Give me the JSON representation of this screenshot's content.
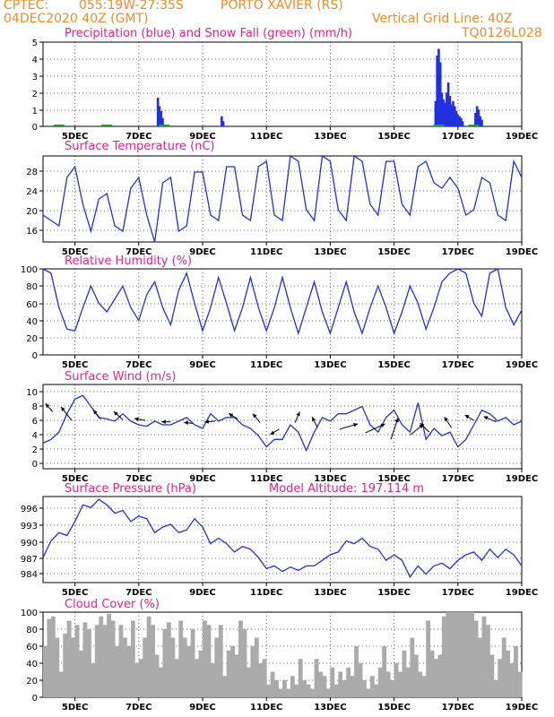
{
  "header": {
    "source": "CPTEC:",
    "coords": "055:19W-27:35S",
    "location": "PORTO XAVIER (RS)",
    "init": "04DEC2020 40Z (GMT)",
    "grid_note": "Vertical Grid Line: 40Z",
    "model_code": "TQ0126L028"
  },
  "colors": {
    "header": "#f08c28",
    "title": "#e8208a",
    "series": "#2030e0",
    "snow": "#20a020",
    "cloud": "#aaaaaa",
    "grid": "#666666"
  },
  "x_axis": {
    "ticks": [
      "5DEC",
      "7DEC",
      "9DEC",
      "11DEC",
      "13DEC",
      "15DEC",
      "17DEC",
      "19DEC"
    ]
  },
  "chart_data": [
    {
      "id": "precip",
      "type": "bar",
      "title": "Precipitation (blue) and Snow Fall (green) (mm/h)",
      "ylim": [
        0,
        5
      ],
      "yticks": [
        "5",
        "4",
        "3",
        "2",
        "1",
        "0"
      ],
      "series": [
        {
          "name": "Precipitation",
          "color": "#2030e0",
          "x": [
            7.6,
            7.65,
            7.7,
            7.75,
            9.6,
            9.65,
            16.3,
            16.35,
            16.4,
            16.45,
            16.5,
            16.55,
            16.6,
            16.65,
            16.7,
            16.75,
            16.8,
            16.85,
            16.9,
            16.95,
            17.0,
            17.05,
            17.1,
            17.15,
            17.55,
            17.6,
            17.65,
            17.7,
            17.75
          ],
          "values": [
            1.7,
            1.2,
            0.9,
            0.5,
            0.6,
            0.3,
            1.5,
            4.2,
            4.6,
            3.8,
            2.0,
            1.6,
            1.4,
            2.0,
            2.6,
            1.8,
            1.3,
            1.5,
            1.2,
            0.9,
            0.7,
            0.6,
            0.5,
            0.3,
            0.8,
            1.2,
            1.0,
            0.6,
            0.4
          ]
        }
      ]
    },
    {
      "id": "temperature",
      "type": "line",
      "title": "Surface Temperature (nC)",
      "ylim": [
        15,
        31
      ],
      "yticks": [
        "28",
        "24",
        "20",
        "16"
      ],
      "x": [
        4.0,
        4.25,
        4.5,
        4.75,
        5.0,
        5.25,
        5.5,
        5.75,
        6.0,
        6.25,
        6.5,
        6.75,
        7.0,
        7.25,
        7.5,
        7.75,
        8.0,
        8.25,
        8.5,
        8.75,
        9.0,
        9.25,
        9.5,
        9.75,
        10.0,
        10.25,
        10.5,
        10.75,
        11.0,
        11.25,
        11.5,
        11.75,
        12.0,
        12.25,
        12.5,
        12.75,
        13.0,
        13.25,
        13.5,
        13.75,
        14.0,
        14.25,
        14.5,
        14.75,
        15.0,
        15.25,
        15.5,
        15.75,
        16.0,
        16.25,
        16.5,
        16.75,
        17.0,
        17.25,
        17.5,
        17.75,
        18.0,
        18.25,
        18.5,
        18.75,
        19.0
      ],
      "values": [
        20,
        19,
        18,
        27,
        29,
        22,
        17,
        23,
        24,
        18,
        17,
        25,
        27,
        20,
        15,
        26,
        27,
        17,
        18,
        28,
        28,
        20,
        19,
        29,
        29,
        20,
        19,
        29,
        30,
        20,
        19,
        31,
        30,
        21,
        19,
        31,
        30,
        21,
        19,
        31,
        30,
        22,
        20,
        30,
        30,
        22,
        20,
        29,
        30,
        26,
        25,
        27,
        25,
        20,
        21,
        27,
        26,
        20,
        19,
        30,
        27
      ]
    },
    {
      "id": "humidity",
      "type": "line",
      "title": "Relative Humidity (%)",
      "ylim": [
        0,
        100
      ],
      "yticks": [
        "100",
        "80",
        "60",
        "40",
        "20",
        "0"
      ],
      "x": [
        4.0,
        4.25,
        4.5,
        4.75,
        5.0,
        5.25,
        5.5,
        5.75,
        6.0,
        6.25,
        6.5,
        6.75,
        7.0,
        7.25,
        7.5,
        7.75,
        8.0,
        8.25,
        8.5,
        8.75,
        9.0,
        9.25,
        9.5,
        9.75,
        10.0,
        10.25,
        10.5,
        10.75,
        11.0,
        11.25,
        11.5,
        11.75,
        12.0,
        12.25,
        12.5,
        12.75,
        13.0,
        13.25,
        13.5,
        13.75,
        14.0,
        14.25,
        14.5,
        14.75,
        15.0,
        15.25,
        15.5,
        15.75,
        16.0,
        16.25,
        16.5,
        16.75,
        17.0,
        17.25,
        17.5,
        17.75,
        18.0,
        18.25,
        18.5,
        18.75,
        19.0
      ],
      "values": [
        100,
        95,
        55,
        30,
        28,
        55,
        80,
        60,
        50,
        65,
        80,
        55,
        40,
        70,
        85,
        55,
        35,
        75,
        95,
        60,
        28,
        55,
        90,
        60,
        28,
        55,
        90,
        55,
        28,
        55,
        90,
        55,
        25,
        55,
        85,
        50,
        25,
        55,
        85,
        50,
        25,
        55,
        80,
        55,
        25,
        50,
        80,
        60,
        30,
        55,
        85,
        95,
        100,
        95,
        60,
        45,
        95,
        100,
        55,
        35,
        52
      ]
    },
    {
      "id": "wind",
      "type": "line",
      "title": "Surface Wind (m/s)",
      "ylim": [
        -1,
        10.5
      ],
      "yticks": [
        "10",
        "8",
        "6",
        "4",
        "2",
        "0"
      ],
      "x": [
        4.0,
        4.25,
        4.5,
        4.75,
        5.0,
        5.25,
        5.5,
        5.75,
        6.0,
        6.25,
        6.5,
        6.75,
        7.0,
        7.25,
        7.5,
        7.75,
        8.0,
        8.25,
        8.5,
        8.75,
        9.0,
        9.25,
        9.5,
        9.75,
        10.0,
        10.25,
        10.5,
        10.75,
        11.0,
        11.25,
        11.5,
        11.75,
        12.0,
        12.25,
        12.5,
        12.75,
        13.0,
        13.25,
        13.5,
        13.75,
        14.0,
        14.25,
        14.5,
        14.75,
        15.0,
        15.25,
        15.5,
        15.75,
        16.0,
        16.25,
        16.5,
        16.75,
        17.0,
        17.25,
        17.5,
        17.75,
        18.0,
        18.25,
        18.5,
        18.75,
        19.0
      ],
      "values": [
        2.5,
        3.0,
        4.0,
        6.5,
        8.5,
        9.0,
        7.5,
        6.0,
        5.8,
        5.5,
        6.5,
        5.5,
        5.0,
        4.8,
        5.5,
        5.0,
        5.0,
        5.5,
        6.0,
        5.0,
        4.5,
        6.5,
        5.5,
        6.0,
        6.0,
        5.0,
        4.5,
        3.5,
        2.0,
        3.0,
        3.0,
        5.0,
        4.0,
        1.5,
        4.0,
        6.0,
        5.5,
        6.5,
        6.5,
        7.0,
        7.5,
        5.0,
        4.0,
        6.0,
        7.0,
        5.0,
        4.0,
        8.0,
        3.0,
        4.5,
        3.5,
        4.0,
        2.0,
        3.0,
        5.0,
        7.0,
        6.5,
        5.5,
        6.0,
        5.0,
        5.5
      ],
      "vectors": [
        {
          "x": 4.3,
          "y": 6.8,
          "dx": -8,
          "dy": -9
        },
        {
          "x": 4.9,
          "y": 5.6,
          "dx": -12,
          "dy": -15
        },
        {
          "x": 5.8,
          "y": 5.8,
          "dx": -8,
          "dy": -10
        },
        {
          "x": 6.5,
          "y": 5.7,
          "dx": -10,
          "dy": -9
        },
        {
          "x": 7.2,
          "y": 5.6,
          "dx": -12,
          "dy": -2
        },
        {
          "x": 8.0,
          "y": 5.4,
          "dx": -10,
          "dy": 0
        },
        {
          "x": 8.7,
          "y": 5.2,
          "dx": -10,
          "dy": -1
        },
        {
          "x": 9.4,
          "y": 5.5,
          "dx": -12,
          "dy": 1
        },
        {
          "x": 10.1,
          "y": 5.8,
          "dx": -10,
          "dy": -6
        },
        {
          "x": 10.8,
          "y": 5.3,
          "dx": -8,
          "dy": -10
        },
        {
          "x": 11.4,
          "y": 4.4,
          "dx": -10,
          "dy": 6
        },
        {
          "x": 11.9,
          "y": 5.3,
          "dx": 5,
          "dy": -12
        },
        {
          "x": 12.6,
          "y": 4.6,
          "dx": -6,
          "dy": -12
        },
        {
          "x": 13.3,
          "y": 4.4,
          "dx": 20,
          "dy": -6
        },
        {
          "x": 14.1,
          "y": 3.9,
          "dx": 22,
          "dy": -10
        },
        {
          "x": 14.9,
          "y": 3.0,
          "dx": 8,
          "dy": -24
        },
        {
          "x": 15.5,
          "y": 3.6,
          "dx": 15,
          "dy": -12
        },
        {
          "x": 16.1,
          "y": 4.0,
          "dx": -10,
          "dy": -10
        },
        {
          "x": 16.8,
          "y": 4.6,
          "dx": -8,
          "dy": -12
        },
        {
          "x": 17.5,
          "y": 5.6,
          "dx": -10,
          "dy": -6
        },
        {
          "x": 18.2,
          "y": 5.4,
          "dx": -14,
          "dy": -6
        }
      ]
    },
    {
      "id": "pressure",
      "type": "line",
      "title": "Surface Pressure (hPa)",
      "annotation": "Model Altitude: 197.114 m",
      "ylim": [
        982,
        997.5
      ],
      "yticks": [
        "996",
        "993",
        "990",
        "987",
        "984"
      ],
      "x": [
        4.0,
        4.25,
        4.5,
        4.75,
        5.0,
        5.25,
        5.5,
        5.75,
        6.0,
        6.25,
        6.5,
        6.75,
        7.0,
        7.25,
        7.5,
        7.75,
        8.0,
        8.25,
        8.5,
        8.75,
        9.0,
        9.25,
        9.5,
        9.75,
        10.0,
        10.25,
        10.5,
        10.75,
        11.0,
        11.25,
        11.5,
        11.75,
        12.0,
        12.25,
        12.5,
        12.75,
        13.0,
        13.25,
        13.5,
        13.75,
        14.0,
        14.25,
        14.5,
        14.75,
        15.0,
        15.25,
        15.5,
        15.75,
        16.0,
        16.25,
        16.5,
        16.75,
        17.0,
        17.25,
        17.5,
        17.75,
        18.0,
        18.25,
        18.5,
        18.75,
        19.0
      ],
      "values": [
        986.5,
        989.5,
        991,
        990.5,
        993,
        996,
        995.5,
        997,
        996,
        994.5,
        995,
        993,
        994,
        993.5,
        991,
        992,
        992.5,
        991,
        991.5,
        993.5,
        992,
        989,
        990,
        989,
        987.5,
        988.5,
        988,
        986.5,
        984.5,
        985,
        984,
        984.8,
        984.2,
        985,
        985,
        986,
        987,
        987.5,
        989.5,
        989,
        990,
        988.5,
        988,
        986,
        987,
        986,
        983,
        985,
        983.5,
        985,
        985.5,
        984.5,
        986,
        987,
        987.5,
        986,
        988,
        986.5,
        988,
        987,
        985
      ]
    },
    {
      "id": "cloud",
      "type": "bar",
      "title": "Cloud Cover (%)",
      "ylim": [
        0,
        100
      ],
      "yticks": [
        "100",
        "80",
        "60",
        "40",
        "20",
        "0"
      ],
      "x": [
        4.0,
        4.125,
        4.25,
        4.375,
        4.5,
        4.625,
        4.75,
        4.875,
        5.0,
        5.125,
        5.25,
        5.375,
        5.5,
        5.625,
        5.75,
        5.875,
        6.0,
        6.125,
        6.25,
        6.375,
        6.5,
        6.625,
        6.75,
        6.875,
        7.0,
        7.125,
        7.25,
        7.375,
        7.5,
        7.625,
        7.75,
        7.875,
        8.0,
        8.125,
        8.25,
        8.375,
        8.5,
        8.625,
        8.75,
        8.875,
        9.0,
        9.125,
        9.25,
        9.375,
        9.5,
        9.625,
        9.75,
        9.875,
        10.0,
        10.125,
        10.25,
        10.375,
        10.5,
        10.625,
        10.75,
        10.875,
        11.0,
        11.125,
        11.25,
        11.375,
        11.5,
        11.625,
        11.75,
        11.875,
        12.0,
        12.125,
        12.25,
        12.375,
        12.5,
        12.625,
        12.75,
        12.875,
        13.0,
        13.125,
        13.25,
        13.375,
        13.5,
        13.625,
        13.75,
        13.875,
        14.0,
        14.125,
        14.25,
        14.375,
        14.5,
        14.625,
        14.75,
        14.875,
        15.0,
        15.125,
        15.25,
        15.375,
        15.5,
        15.625,
        15.75,
        15.875,
        16.0,
        16.125,
        16.25,
        16.375,
        16.5,
        16.625,
        16.75,
        16.875,
        17.0,
        17.125,
        17.25,
        17.375,
        17.5,
        17.625,
        17.75,
        17.875,
        18.0,
        18.125,
        18.25,
        18.375,
        18.5,
        18.625,
        18.75,
        18.875
      ],
      "values": [
        60,
        92,
        95,
        70,
        30,
        75,
        90,
        70,
        85,
        55,
        88,
        80,
        40,
        85,
        95,
        85,
        98,
        90,
        60,
        85,
        70,
        60,
        90,
        40,
        45,
        70,
        95,
        85,
        50,
        35,
        80,
        88,
        70,
        45,
        90,
        70,
        60,
        80,
        45,
        55,
        90,
        85,
        40,
        70,
        85,
        25,
        55,
        60,
        50,
        90,
        80,
        35,
        60,
        70,
        40,
        45,
        15,
        30,
        20,
        10,
        20,
        10,
        25,
        15,
        45,
        20,
        15,
        10,
        45,
        30,
        25,
        10,
        35,
        15,
        30,
        20,
        35,
        25,
        60,
        40,
        20,
        10,
        25,
        15,
        35,
        60,
        30,
        20,
        40,
        30,
        55,
        35,
        70,
        50,
        30,
        25,
        90,
        55,
        45,
        50,
        95,
        100,
        100,
        100,
        100,
        100,
        100,
        100,
        90,
        70,
        95,
        85,
        50,
        20,
        45,
        70,
        55,
        40,
        60,
        30
      ]
    }
  ]
}
